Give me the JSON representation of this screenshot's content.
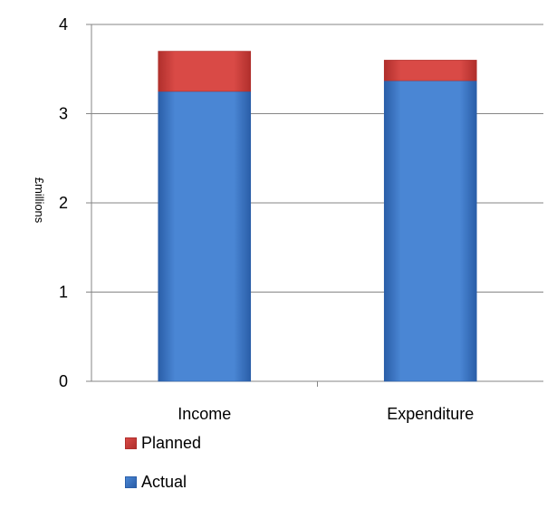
{
  "chart_data": {
    "type": "bar",
    "stacked": true,
    "categories": [
      "Income",
      "Expenditure"
    ],
    "series": [
      {
        "name": "Actual",
        "values": [
          3.25,
          3.37
        ],
        "color": "#4a86d4",
        "color_dark": "#2a5ea8"
      },
      {
        "name": "Planned",
        "values": [
          0.45,
          0.23
        ],
        "color": "#d94a46",
        "color_dark": "#b02f2c"
      }
    ],
    "title": "",
    "xlabel": "",
    "ylabel": "£millions",
    "ylim": [
      0,
      4
    ],
    "yticks": [
      "0",
      "1",
      "2",
      "3",
      "4"
    ],
    "grid": true,
    "legend_position": "bottom-left"
  }
}
